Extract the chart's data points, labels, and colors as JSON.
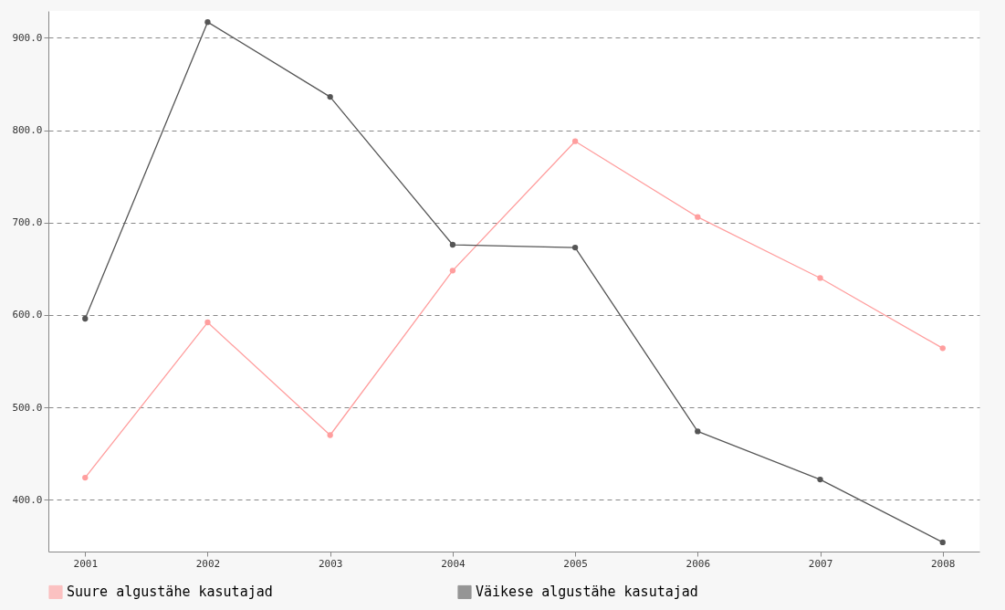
{
  "chart_data": {
    "type": "line",
    "categories": [
      "2001",
      "2002",
      "2003",
      "2004",
      "2005",
      "2006",
      "2007",
      "2008"
    ],
    "series": [
      {
        "name": "Suure algustähe kasutajad",
        "color": "#ff9e9e",
        "values": [
          424,
          592,
          470,
          648,
          788,
          706,
          640,
          564
        ]
      },
      {
        "name": "Väikese algustähe kasutajad",
        "color": "#555555",
        "values": [
          596,
          917,
          836,
          676,
          673,
          474,
          422,
          354
        ]
      }
    ],
    "ylim": [
      344,
      929
    ],
    "yticks": [
      {
        "value": 400,
        "label": "400.0"
      },
      {
        "value": 500,
        "label": "500.0"
      },
      {
        "value": 600,
        "label": "600.0"
      },
      {
        "value": 700,
        "label": "700.0"
      },
      {
        "value": 800,
        "label": "800.0"
      },
      {
        "value": 900,
        "label": "900.0"
      }
    ],
    "grid": "y",
    "legend": "bottom",
    "marker": "circle",
    "line_style": "solid"
  }
}
